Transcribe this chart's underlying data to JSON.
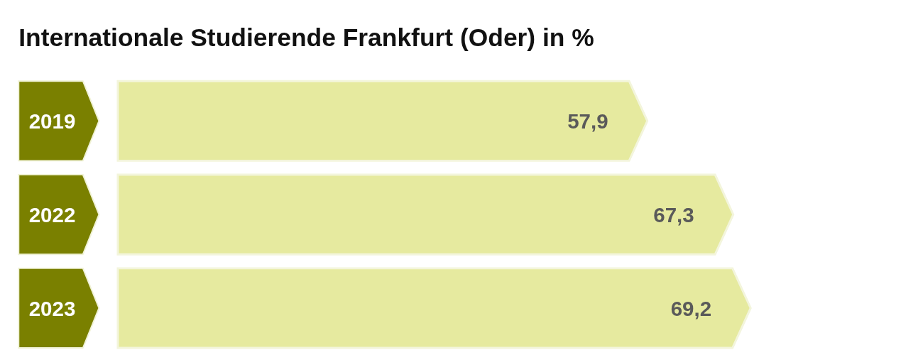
{
  "chart_data": {
    "type": "bar",
    "orientation": "horizontal",
    "title": "Internationale Studierende Frankfurt (Oder) in %",
    "categories": [
      "2019",
      "2022",
      "2023"
    ],
    "values": [
      57.9,
      67.3,
      69.2
    ],
    "value_labels": [
      "57,9",
      "67,3",
      "69,2"
    ],
    "color": "#e6ea9f"
  }
}
